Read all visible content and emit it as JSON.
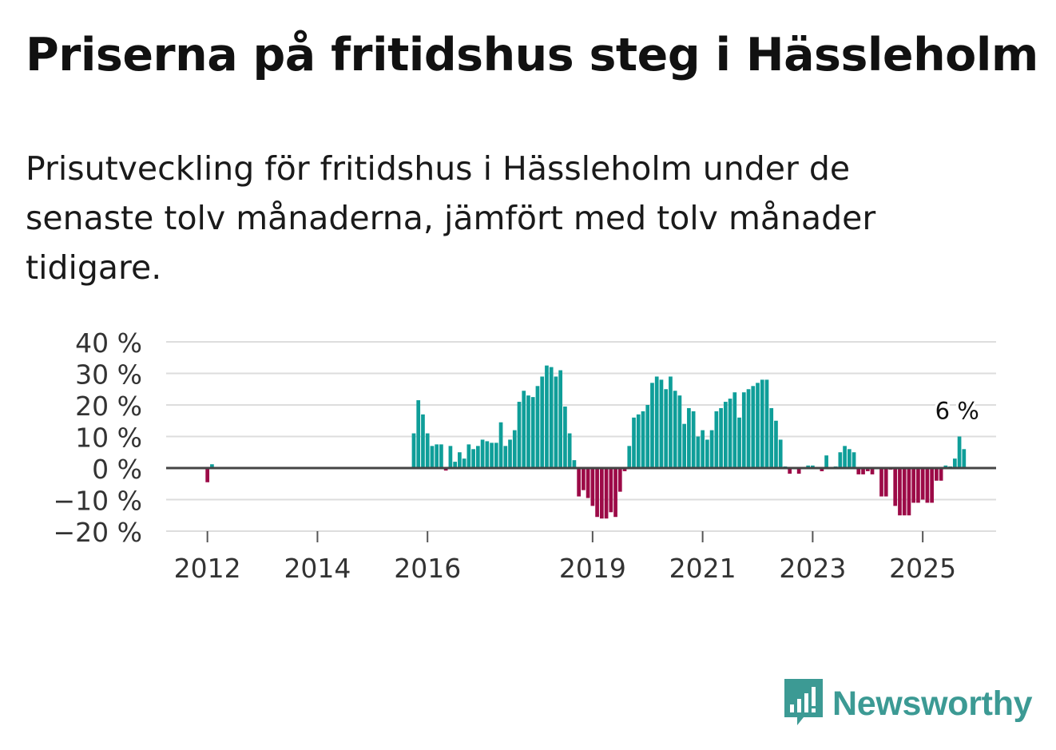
{
  "title": "Priserna på fritidshus steg i Hässleholm",
  "subtitle": "Prisutveckling för fritidshus i Hässleholm under de senaste tolv månaderna, jämfört med tolv månader tidigare.",
  "brand": {
    "name": "Newsworthy",
    "color": "#3c9a94"
  },
  "colors": {
    "positive": "#0f9e99",
    "negative": "#9c0a47",
    "grid": "#dddddd",
    "zero": "#444444"
  },
  "chart_data": {
    "type": "bar",
    "title": "Priserna på fritidshus steg i Hässleholm",
    "xlabel": "",
    "ylabel": "",
    "ylim": [
      -20,
      40
    ],
    "y_ticks": [
      40,
      30,
      20,
      10,
      0,
      -10,
      -20
    ],
    "y_tick_labels": [
      "40 %",
      "30 %",
      "20 %",
      "10 %",
      "0 %",
      "−10 %",
      "−20 %"
    ],
    "x_ticks": [
      {
        "label": "2012",
        "month_index": 0
      },
      {
        "label": "2014",
        "month_index": 24
      },
      {
        "label": "2016",
        "month_index": 48
      },
      {
        "label": "2019",
        "month_index": 84
      },
      {
        "label": "2021",
        "month_index": 108
      },
      {
        "label": "2023",
        "month_index": 132
      },
      {
        "label": "2025",
        "month_index": 156
      }
    ],
    "x_range_months": [
      -9,
      172
    ],
    "series": [
      {
        "name": "Prisutveckling (%)",
        "start": "2012-01",
        "month_offset": 0,
        "values": [
          -4.5,
          1.2
        ]
      },
      {
        "name": "Prisutveckling (%)",
        "start": "2015-10",
        "month_offset": 45,
        "values": [
          11,
          21.5,
          17,
          11,
          7,
          7.5,
          7.5,
          -0.8,
          7,
          2,
          5,
          3,
          7.5,
          6,
          7,
          9,
          8.5,
          8,
          8,
          14.5,
          7,
          9,
          12,
          21,
          24.5,
          23,
          22.5,
          26,
          29,
          32.5,
          32,
          29,
          31,
          19.5,
          11,
          2.5,
          -9,
          -7,
          -9.5,
          -12,
          -15.5,
          -16,
          -16,
          -14,
          -15.5,
          -7.5,
          -1,
          7,
          16,
          17,
          18,
          20,
          27,
          29,
          28,
          25,
          29,
          24.5,
          23,
          14,
          19,
          18,
          10,
          12,
          9,
          12,
          18,
          19,
          21,
          22,
          24,
          16,
          24,
          25,
          26,
          27,
          28,
          28,
          19,
          15,
          9,
          0.5,
          -1.8,
          -0.3,
          -1.8,
          -0.3,
          0.8,
          0.8,
          -0.3,
          -1,
          4,
          -0.3,
          0.5,
          5,
          7,
          6,
          5,
          -2,
          -2,
          -1,
          -2,
          -0.3,
          -9,
          -9,
          -0.5,
          -12,
          -15,
          -15,
          -15,
          -11,
          -11,
          -10,
          -11,
          -11,
          -4,
          -4,
          0.8,
          0.5,
          3,
          10,
          6
        ]
      }
    ],
    "annotation": {
      "text": "6 %",
      "value": 6,
      "at": "last"
    }
  }
}
